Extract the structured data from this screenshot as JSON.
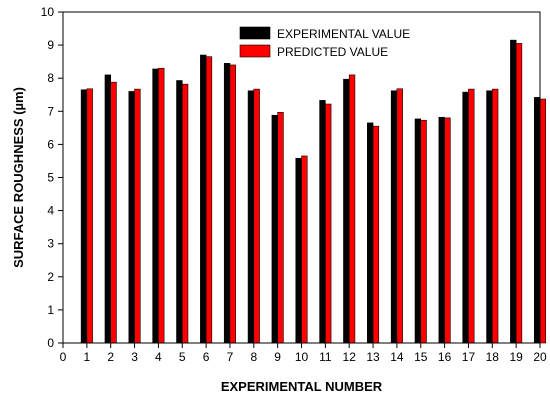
{
  "chart_data": {
    "type": "bar",
    "xlabel": "EXPERIMENTAL NUMBER",
    "ylabel": "SURFACE ROUGHNESS (µm)",
    "xlim": [
      0,
      20
    ],
    "ylim": [
      0,
      10
    ],
    "x_ticks": [
      0,
      1,
      2,
      3,
      4,
      5,
      6,
      7,
      8,
      9,
      10,
      11,
      12,
      13,
      14,
      15,
      16,
      17,
      18,
      19,
      20
    ],
    "y_ticks": [
      0,
      1,
      2,
      3,
      4,
      5,
      6,
      7,
      8,
      9,
      10
    ],
    "categories": [
      1,
      2,
      3,
      4,
      5,
      6,
      7,
      8,
      9,
      10,
      11,
      12,
      13,
      14,
      15,
      16,
      17,
      18,
      19,
      20
    ],
    "series": [
      {
        "name": "EXPERIMENTAL VALUE",
        "color": "#000000",
        "values": [
          7.65,
          8.1,
          7.6,
          8.28,
          7.93,
          8.7,
          8.45,
          7.62,
          6.88,
          5.58,
          7.33,
          7.97,
          6.65,
          7.62,
          6.77,
          6.82,
          7.58,
          7.62,
          9.15,
          7.42
        ]
      },
      {
        "name": "PREDICTED VALUE",
        "color": "#ff0000",
        "values": [
          7.68,
          7.88,
          7.67,
          8.3,
          7.82,
          8.65,
          8.4,
          7.67,
          6.97,
          5.65,
          7.22,
          8.1,
          6.55,
          7.68,
          6.73,
          6.8,
          7.67,
          7.67,
          9.05,
          7.37
        ]
      }
    ],
    "legend_position": "top-right",
    "grid": false
  }
}
